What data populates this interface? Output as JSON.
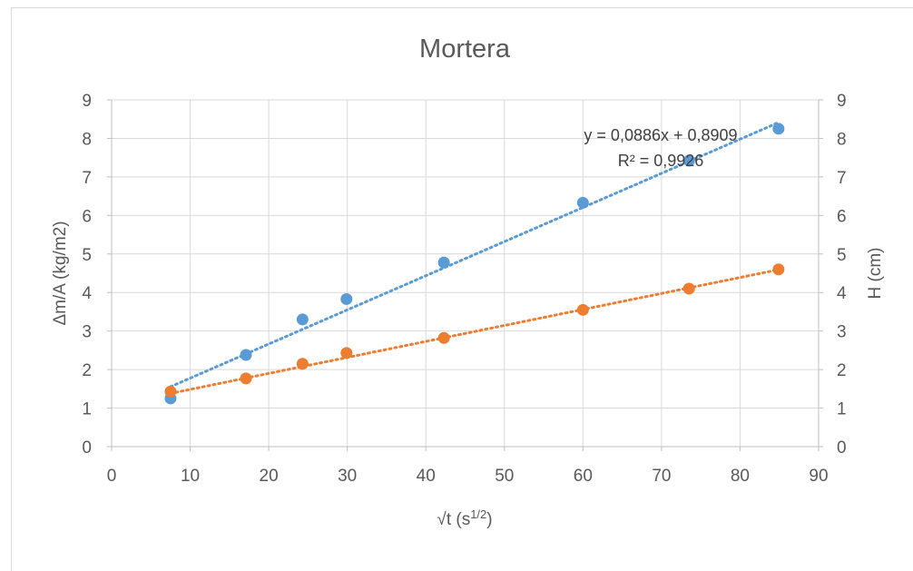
{
  "chart_data": {
    "type": "scatter",
    "title": "Mortera",
    "xlabel": "√t (s",
    "xlabel_sup": "1/2",
    "xlabel_end": ")",
    "ylabel": "Δm/A (kg/m2)",
    "y2label": "H (cm)",
    "xlim": [
      0,
      90
    ],
    "ylim": [
      0,
      9
    ],
    "y2lim": [
      0,
      9
    ],
    "x_ticks": [
      "0",
      "10",
      "20",
      "30",
      "40",
      "50",
      "60",
      "70",
      "80",
      "90"
    ],
    "y_ticks": [
      "0",
      "1",
      "2",
      "3",
      "4",
      "5",
      "6",
      "7",
      "8",
      "9"
    ],
    "y2_ticks": [
      "0",
      "1",
      "2",
      "3",
      "4",
      "5",
      "6",
      "7",
      "8",
      "9"
    ],
    "grid": true,
    "series": [
      {
        "axis": "left",
        "color": "#5b9bd5",
        "x": [
          7.5,
          17.1,
          24.3,
          29.9,
          42.3,
          60.0,
          73.5,
          84.9
        ],
        "y": [
          1.25,
          2.38,
          3.3,
          3.83,
          4.78,
          6.33,
          7.42,
          8.25
        ],
        "trendline": {
          "type": "linear",
          "slope": 0.0886,
          "intercept": 0.8909,
          "x_range": [
            7.5,
            84.9
          ]
        },
        "equation": "y = 0,0886x + 0,8909",
        "r2": "R² = 0,9926"
      },
      {
        "axis": "right",
        "color": "#ed7d31",
        "x": [
          7.5,
          17.1,
          24.3,
          29.9,
          42.3,
          60.0,
          73.5,
          84.9
        ],
        "y": [
          1.43,
          1.77,
          2.15,
          2.43,
          2.82,
          3.55,
          4.1,
          4.6
        ],
        "trendline": {
          "type": "linear",
          "slope": 0.0415,
          "intercept": 1.07,
          "x_range": [
            7.5,
            84.9
          ]
        }
      }
    ]
  }
}
